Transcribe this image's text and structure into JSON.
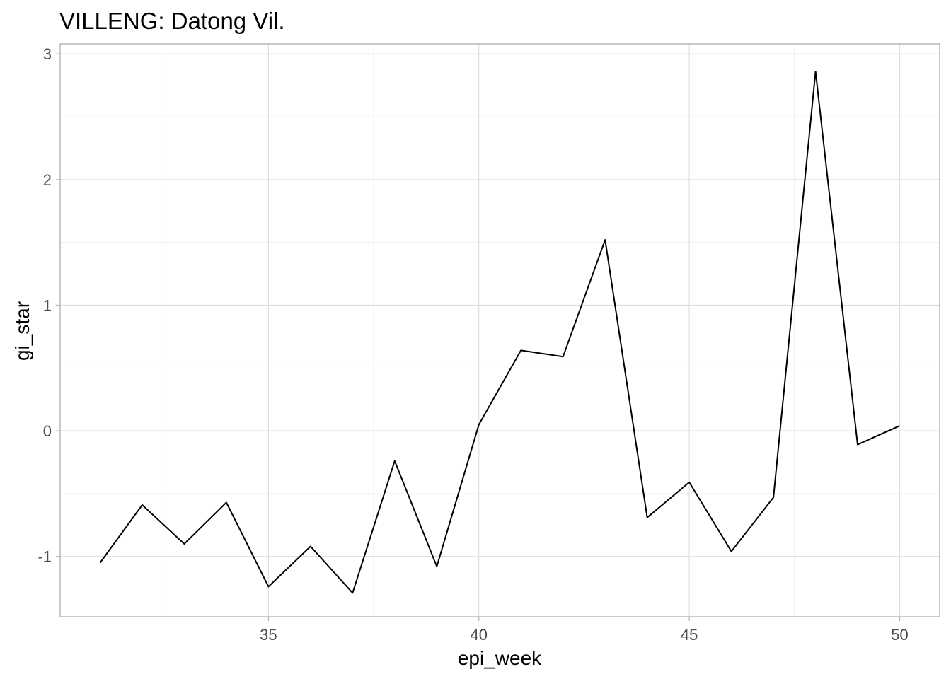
{
  "chart_data": {
    "type": "line",
    "title": "VILLENG: Datong Vil.",
    "xlabel": "epi_week",
    "ylabel": "gi_star",
    "xlim": [
      30.05,
      50.95
    ],
    "ylim": [
      -1.48,
      3.08
    ],
    "x_ticks": [
      35,
      40,
      45,
      50
    ],
    "y_ticks": [
      -1,
      0,
      1,
      2,
      3
    ],
    "x_minor": [
      32.5,
      37.5,
      42.5,
      47.5
    ],
    "y_minor": [
      -0.5,
      0.5,
      1.5,
      2.5
    ],
    "grid": true,
    "legend": "none",
    "line_color": "#000000",
    "x": [
      31,
      32,
      33,
      34,
      35,
      36,
      37,
      38,
      39,
      40,
      41,
      42,
      43,
      44,
      45,
      46,
      47,
      48,
      49,
      50
    ],
    "values": [
      -1.05,
      -0.59,
      -0.9,
      -0.57,
      -1.24,
      -0.92,
      -1.29,
      -0.24,
      -1.08,
      0.05,
      0.64,
      0.59,
      1.52,
      -0.69,
      -0.41,
      -0.96,
      -0.53,
      2.86,
      -0.11,
      0.04
    ]
  }
}
